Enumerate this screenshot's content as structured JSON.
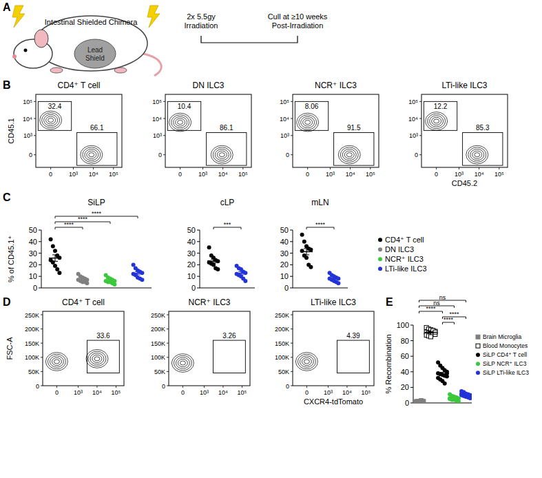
{
  "panel_labels": [
    "A",
    "B",
    "C",
    "D",
    "E"
  ],
  "schematic": {
    "title": "Intestinal Shielded Chimera",
    "shield_label": [
      "Lead",
      "Shield"
    ],
    "steps": [
      [
        "2x 5.5gy",
        "Irradiation"
      ],
      [
        "Cull at ≥10 weeks",
        "Post-Irradiation"
      ]
    ]
  },
  "chart_data": [
    {
      "type": "flow",
      "title": "CD4⁺ T cell",
      "y_label": "CD45.1",
      "log": true,
      "xlim": [
        -400,
        262144
      ],
      "ylim": [
        -400,
        262144
      ],
      "xticks": [
        0,
        {
          "value": 1000,
          "label": "10³"
        },
        {
          "value": 10000,
          "label": "10⁴"
        },
        {
          "value": 100000,
          "label": "10⁵"
        }
      ],
      "yticks": [
        0,
        {
          "value": 1000,
          "label": "10³"
        },
        {
          "value": 10000,
          "label": "10⁴"
        },
        {
          "value": 100000,
          "label": "10⁵"
        }
      ],
      "gates": [
        {
          "value": 32.4,
          "x": [
            -300,
            800
          ],
          "y": [
            2000,
            100000
          ]
        },
        {
          "value": 66.1,
          "x": [
            1500,
            150000
          ],
          "y": [
            -300,
            1500
          ]
        }
      ],
      "populations": [
        {
          "x": 0,
          "y": 8000
        },
        {
          "x": 8000,
          "y": 0
        }
      ]
    },
    {
      "type": "flow",
      "title": "DN ILC3",
      "log": true,
      "xlim": [
        -400,
        262144
      ],
      "ylim": [
        -400,
        262144
      ],
      "xticks": [
        0,
        {
          "value": 1000,
          "label": "10³"
        },
        {
          "value": 10000,
          "label": "10⁴"
        },
        {
          "value": 100000,
          "label": "10⁵"
        }
      ],
      "yticks": [
        0,
        {
          "value": 1000,
          "label": "10³"
        },
        {
          "value": 10000,
          "label": "10⁴"
        },
        {
          "value": 100000,
          "label": "10⁵"
        }
      ],
      "gates": [
        {
          "value": 10.4,
          "x": [
            -300,
            800
          ],
          "y": [
            2000,
            100000
          ]
        },
        {
          "value": 86.1,
          "x": [
            1500,
            150000
          ],
          "y": [
            -300,
            1500
          ]
        }
      ],
      "populations": [
        {
          "x": 0,
          "y": 6000
        },
        {
          "x": 9000,
          "y": 0
        }
      ]
    },
    {
      "type": "flow",
      "title": "NCR⁺ ILC3",
      "log": true,
      "xlim": [
        -400,
        262144
      ],
      "ylim": [
        -400,
        262144
      ],
      "xticks": [
        0,
        {
          "value": 1000,
          "label": "10³"
        },
        {
          "value": 10000,
          "label": "10⁴"
        },
        {
          "value": 100000,
          "label": "10⁵"
        }
      ],
      "yticks": [
        0,
        {
          "value": 1000,
          "label": "10³"
        },
        {
          "value": 10000,
          "label": "10⁴"
        },
        {
          "value": 100000,
          "label": "10⁵"
        }
      ],
      "gates": [
        {
          "value": 8.06,
          "x": [
            -300,
            800
          ],
          "y": [
            2000,
            100000
          ]
        },
        {
          "value": 91.5,
          "x": [
            1500,
            150000
          ],
          "y": [
            -300,
            1500
          ]
        }
      ],
      "populations": [
        {
          "x": 0,
          "y": 6000
        },
        {
          "x": 9000,
          "y": 0
        }
      ]
    },
    {
      "type": "flow",
      "title": "LTi-like ILC3",
      "x_label": "CD45.2",
      "log": true,
      "xlim": [
        -400,
        262144
      ],
      "ylim": [
        -400,
        262144
      ],
      "xticks": [
        0,
        {
          "value": 1000,
          "label": "10³"
        },
        {
          "value": 10000,
          "label": "10⁴"
        },
        {
          "value": 100000,
          "label": "10⁵"
        }
      ],
      "yticks": [
        0,
        {
          "value": 1000,
          "label": "10³"
        },
        {
          "value": 10000,
          "label": "10⁴"
        },
        {
          "value": 100000,
          "label": "10⁵"
        }
      ],
      "gates": [
        {
          "value": 12.2,
          "x": [
            -300,
            800
          ],
          "y": [
            2000,
            100000
          ]
        },
        {
          "value": 85.3,
          "x": [
            1500,
            150000
          ],
          "y": [
            -300,
            1500
          ]
        }
      ],
      "populations": [
        {
          "x": 0,
          "y": 7000
        },
        {
          "x": 8000,
          "y": 0
        }
      ]
    },
    {
      "type": "dot",
      "title": "SiLP",
      "y_label": "% of CD45.1⁺",
      "ylim": [
        0,
        50
      ],
      "yticks": [
        0,
        10,
        20,
        30,
        40,
        50
      ],
      "tick_labels": "y",
      "legend": "right",
      "series": [
        {
          "name": "CD4⁺ T cell",
          "color": "#000000",
          "marker": "circle",
          "values": [
            42,
            36,
            32,
            28,
            26,
            24,
            22,
            19,
            16,
            13
          ],
          "mean": 25.8,
          "sem": 2.8
        },
        {
          "name": "DN ILC3",
          "color": "#808080",
          "marker": "circle",
          "values": [
            12,
            10,
            9,
            8,
            7,
            7,
            6,
            5,
            5,
            4
          ],
          "mean": 7.3,
          "sem": 0.8
        },
        {
          "name": "NCR⁺ ILC3",
          "color": "#3cc83c",
          "marker": "circle",
          "values": [
            11,
            9,
            8,
            7,
            6,
            6,
            5,
            5,
            4,
            3
          ],
          "mean": 6.4,
          "sem": 0.75
        },
        {
          "name": "LTi-like ILC3",
          "color": "#2233d8",
          "marker": "circle",
          "values": [
            20,
            17,
            15,
            14,
            13,
            12,
            11,
            9,
            8,
            7
          ],
          "mean": 12.6,
          "sem": 1.3
        }
      ],
      "annotations": [
        {
          "from": 0,
          "to": 1,
          "label": "****"
        },
        {
          "from": 0,
          "to": 2,
          "label": "****"
        },
        {
          "from": 0,
          "to": 3,
          "label": "****"
        }
      ]
    },
    {
      "type": "dot",
      "title": "cLP",
      "ylim": [
        0,
        50
      ],
      "yticks": [
        0,
        10,
        20,
        30,
        40,
        50
      ],
      "tick_labels": "y",
      "series": [
        {
          "color": "#000000",
          "marker": "circle",
          "values": [
            35,
            28,
            26,
            24,
            23,
            22,
            21,
            20,
            17,
            16
          ],
          "mean": 23.2,
          "sem": 1.7
        },
        {
          "color": "#2233d8",
          "marker": "circle",
          "values": [
            19,
            17,
            16,
            14,
            13,
            12,
            11,
            10,
            8,
            6
          ],
          "mean": 12.6,
          "sem": 1.3
        }
      ],
      "annotations": [
        {
          "from": 0,
          "to": 1,
          "label": "***"
        }
      ]
    },
    {
      "type": "dot",
      "title": "mLN",
      "ylim": [
        0,
        50
      ],
      "yticks": [
        0,
        10,
        20,
        30,
        40,
        50
      ],
      "tick_labels": "y",
      "series": [
        {
          "color": "#000000",
          "marker": "circle",
          "values": [
            46,
            40,
            36,
            34,
            33,
            32,
            28,
            26,
            20,
            18
          ],
          "mean": 31.3,
          "sem": 2.7
        },
        {
          "color": "#2233d8",
          "marker": "circle",
          "values": [
            13,
            11,
            10,
            9,
            8,
            8,
            7,
            6,
            5,
            4
          ],
          "mean": 8.1,
          "sem": 0.85
        }
      ],
      "annotations": [
        {
          "from": 0,
          "to": 1,
          "label": "****"
        }
      ]
    },
    {
      "type": "flow",
      "title": "CD4⁺ T cell",
      "y_label": "FSC-A",
      "log": "x",
      "xlim": [
        -400,
        262144
      ],
      "ylim": [
        0,
        262144
      ],
      "xticks": [
        0,
        {
          "value": 1000,
          "label": "10³"
        },
        {
          "value": 10000,
          "label": "10⁴"
        },
        {
          "value": 100000,
          "label": "10⁵"
        }
      ],
      "yticks": [
        0,
        {
          "value": 50000,
          "label": "50K"
        },
        {
          "value": 100000,
          "label": "100K"
        },
        {
          "value": 150000,
          "label": "150K"
        },
        {
          "value": 200000,
          "label": "200K"
        },
        {
          "value": 250000,
          "label": "250K"
        }
      ],
      "gates": [
        {
          "value": 33.6,
          "x": [
            3000,
            150000
          ],
          "y": [
            45000,
            160000
          ]
        }
      ],
      "populations": [
        {
          "x": 0,
          "y": 85000
        },
        {
          "x": 10000,
          "y": 95000
        }
      ]
    },
    {
      "type": "flow",
      "title": "NCR⁺ ILC3",
      "log": "x",
      "xlim": [
        -400,
        262144
      ],
      "ylim": [
        0,
        262144
      ],
      "xticks": [
        0,
        {
          "value": 1000,
          "label": "10³"
        },
        {
          "value": 10000,
          "label": "10⁴"
        },
        {
          "value": 100000,
          "label": "10⁵"
        }
      ],
      "yticks": [
        0,
        {
          "value": 50000,
          "label": "50K"
        },
        {
          "value": 100000,
          "label": "100K"
        },
        {
          "value": 150000,
          "label": "150K"
        },
        {
          "value": 200000,
          "label": "200K"
        },
        {
          "value": 250000,
          "label": "250K"
        }
      ],
      "gates": [
        {
          "value": 3.26,
          "x": [
            3000,
            150000
          ],
          "y": [
            45000,
            160000
          ]
        }
      ],
      "populations": [
        {
          "x": 0,
          "y": 80000
        }
      ]
    },
    {
      "type": "flow",
      "title": "LTi-like ILC3",
      "x_label": "CXCR4-tdTomato",
      "log": "x",
      "xlim": [
        -400,
        262144
      ],
      "ylim": [
        0,
        262144
      ],
      "xticks": [
        0,
        {
          "value": 1000,
          "label": "10³"
        },
        {
          "value": 10000,
          "label": "10⁴"
        },
        {
          "value": 100000,
          "label": "10⁵"
        }
      ],
      "yticks": [
        0,
        {
          "value": 50000,
          "label": "50K"
        },
        {
          "value": 100000,
          "label": "100K"
        },
        {
          "value": 150000,
          "label": "150K"
        },
        {
          "value": 200000,
          "label": "200K"
        },
        {
          "value": 250000,
          "label": "250K"
        }
      ],
      "gates": [
        {
          "value": 4.39,
          "x": [
            3000,
            150000
          ],
          "y": [
            45000,
            160000
          ]
        }
      ],
      "populations": [
        {
          "x": 0,
          "y": 85000
        }
      ]
    },
    {
      "type": "dot",
      "y_label": "% Recombination",
      "ylim": [
        0,
        100
      ],
      "yticks": [
        0,
        20,
        40,
        60,
        80,
        100
      ],
      "tick_labels": "y",
      "legend": "right",
      "series": [
        {
          "name": "Brain Microglia",
          "color": "#7f7f7f",
          "marker": "square",
          "values": [
            1,
            2,
            2,
            3,
            2,
            1.5
          ],
          "mean": 1.9,
          "sem": 0.3
        },
        {
          "name": "Blood Monocytes",
          "color": "#000000",
          "marker": "square-open",
          "values": [
            97,
            95,
            94,
            93,
            92,
            91,
            90,
            90,
            89,
            88,
            87,
            86,
            85,
            93,
            91
          ],
          "mean": 90.7,
          "sem": 0.9
        },
        {
          "name": "SiLP CD4⁺ T cell",
          "color": "#000000",
          "marker": "circle",
          "values": [
            52,
            48,
            45,
            42,
            40,
            38,
            37,
            36,
            35,
            34,
            32,
            30,
            28,
            25,
            38
          ],
          "mean": 37.3,
          "sem": 1.9
        },
        {
          "name": "SiLP NCR⁺ ILC3",
          "color": "#3cc83c",
          "marker": "circle",
          "values": [
            11,
            9,
            8,
            7,
            6,
            5,
            5,
            4,
            3,
            2,
            6,
            4
          ],
          "mean": 5.8,
          "sem": 0.8
        },
        {
          "name": "SiLP LTi-like ILC3",
          "color": "#2233d8",
          "marker": "circle",
          "values": [
            15,
            14,
            12,
            11,
            10,
            10,
            9,
            8,
            7,
            6,
            12,
            9
          ],
          "mean": 10.25,
          "sem": 0.8
        }
      ],
      "annotations": [
        {
          "from": 2,
          "to": 3,
          "label": "****"
        },
        {
          "from": 2,
          "to": 4,
          "label": "****"
        },
        {
          "from": 0,
          "to": 2,
          "label": "****"
        },
        {
          "from": 0,
          "to": 3,
          "label": "ns"
        },
        {
          "from": 0,
          "to": 4,
          "label": "ns"
        }
      ]
    }
  ]
}
